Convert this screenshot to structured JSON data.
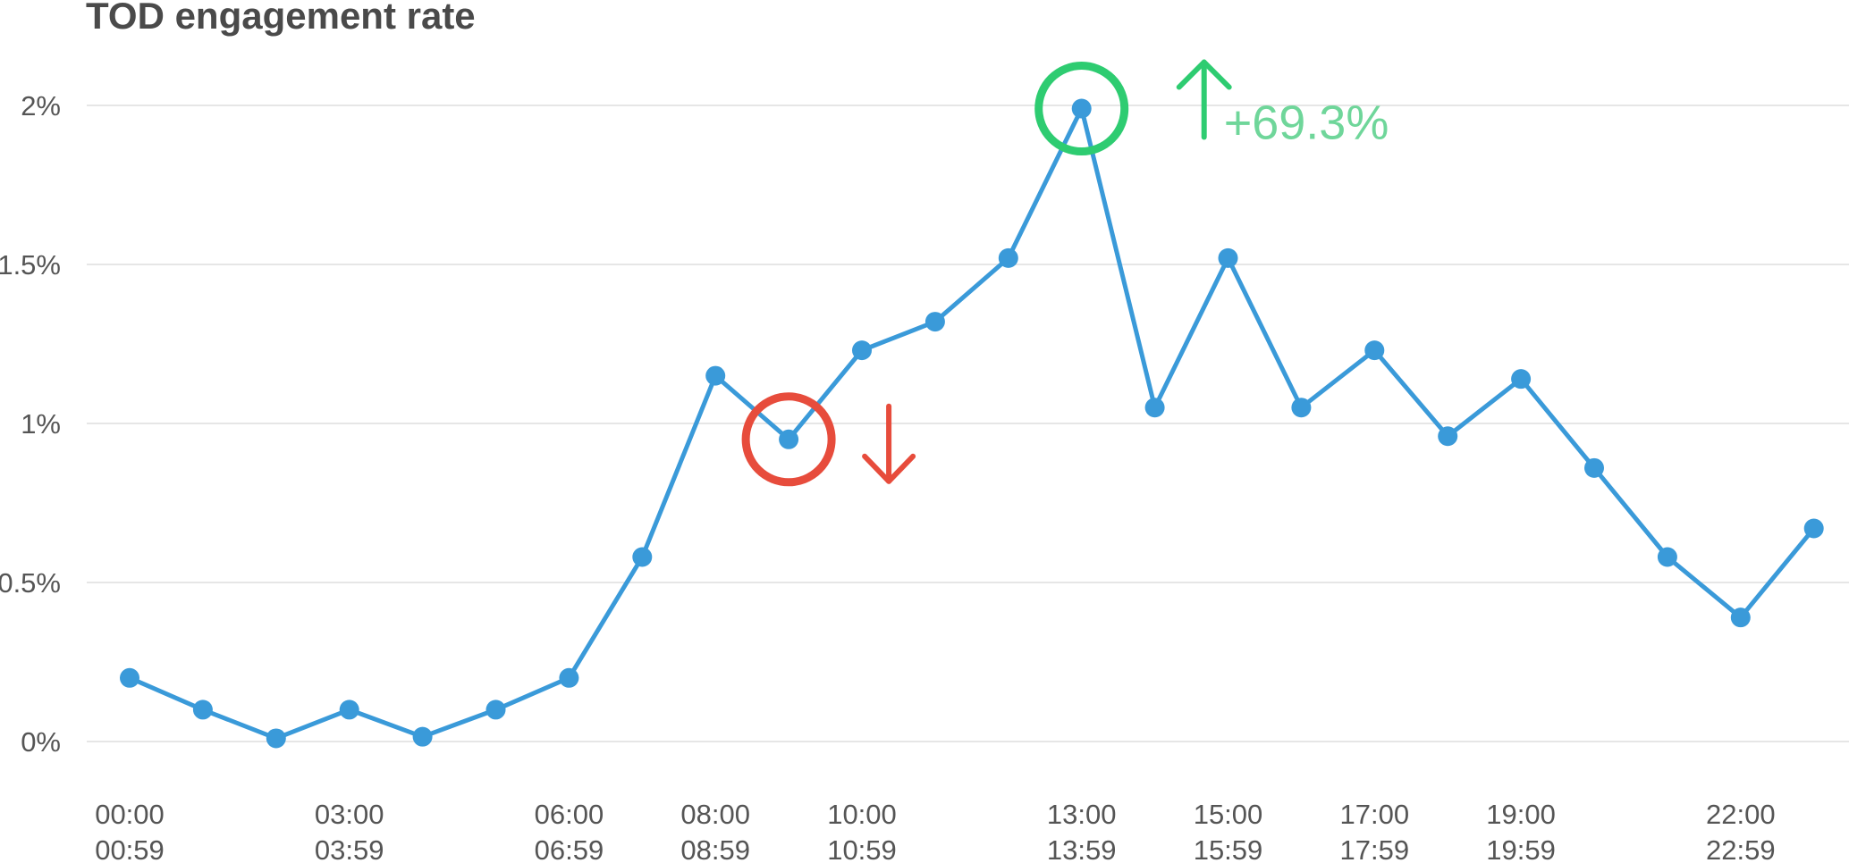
{
  "chart_data": {
    "type": "line",
    "title": "TOD engagement rate",
    "xlabel": "",
    "ylabel": "",
    "ylim": [
      0,
      2
    ],
    "y_ticks": [
      {
        "value": 0,
        "label": "0%"
      },
      {
        "value": 0.5,
        "label": "0.5%"
      },
      {
        "value": 1,
        "label": "1%"
      },
      {
        "value": 1.5,
        "label": "1.5%"
      },
      {
        "value": 2,
        "label": "2%"
      }
    ],
    "grid": true,
    "x": [
      0,
      1,
      2,
      3,
      4,
      5,
      6,
      7,
      8,
      9,
      10,
      11,
      12,
      13,
      14,
      15,
      16,
      17,
      18,
      19,
      20,
      21,
      22,
      23
    ],
    "x_ticks": [
      {
        "x": 0,
        "line1": "00:00",
        "line2": "00:59"
      },
      {
        "x": 3,
        "line1": "03:00",
        "line2": "03:59"
      },
      {
        "x": 6,
        "line1": "06:00",
        "line2": "06:59"
      },
      {
        "x": 8,
        "line1": "08:00",
        "line2": "08:59"
      },
      {
        "x": 10,
        "line1": "10:00",
        "line2": "10:59"
      },
      {
        "x": 13,
        "line1": "13:00",
        "line2": "13:59"
      },
      {
        "x": 15,
        "line1": "15:00",
        "line2": "15:59"
      },
      {
        "x": 17,
        "line1": "17:00",
        "line2": "17:59"
      },
      {
        "x": 19,
        "line1": "19:00",
        "line2": "19:59"
      },
      {
        "x": 22,
        "line1": "22:00",
        "line2": "22:59"
      }
    ],
    "series": [
      {
        "values": [
          0.2,
          0.1,
          0.01,
          0.1,
          0.015,
          0.1,
          0.2,
          0.58,
          1.15,
          0.95,
          1.23,
          1.32,
          1.52,
          1.99,
          1.05,
          1.52,
          1.05,
          1.23,
          0.96,
          1.14,
          0.86,
          0.58,
          0.39,
          0.67
        ],
        "color": "#3a9ad9"
      }
    ],
    "annotations": [
      {
        "type": "circle",
        "x": 9,
        "y": 0.95,
        "color": "#e74c3c"
      },
      {
        "type": "arrow-down",
        "x": 9,
        "y": 0.95,
        "color": "#e74c3c"
      },
      {
        "type": "circle",
        "x": 13,
        "y": 1.99,
        "color": "#2ecc71"
      },
      {
        "type": "arrow-up",
        "x": 13,
        "y": 1.99,
        "color": "#2ecc71"
      },
      {
        "type": "text",
        "x": 13,
        "y": 1.99,
        "text": "+69.3%",
        "color": "#6fd69a"
      }
    ]
  }
}
